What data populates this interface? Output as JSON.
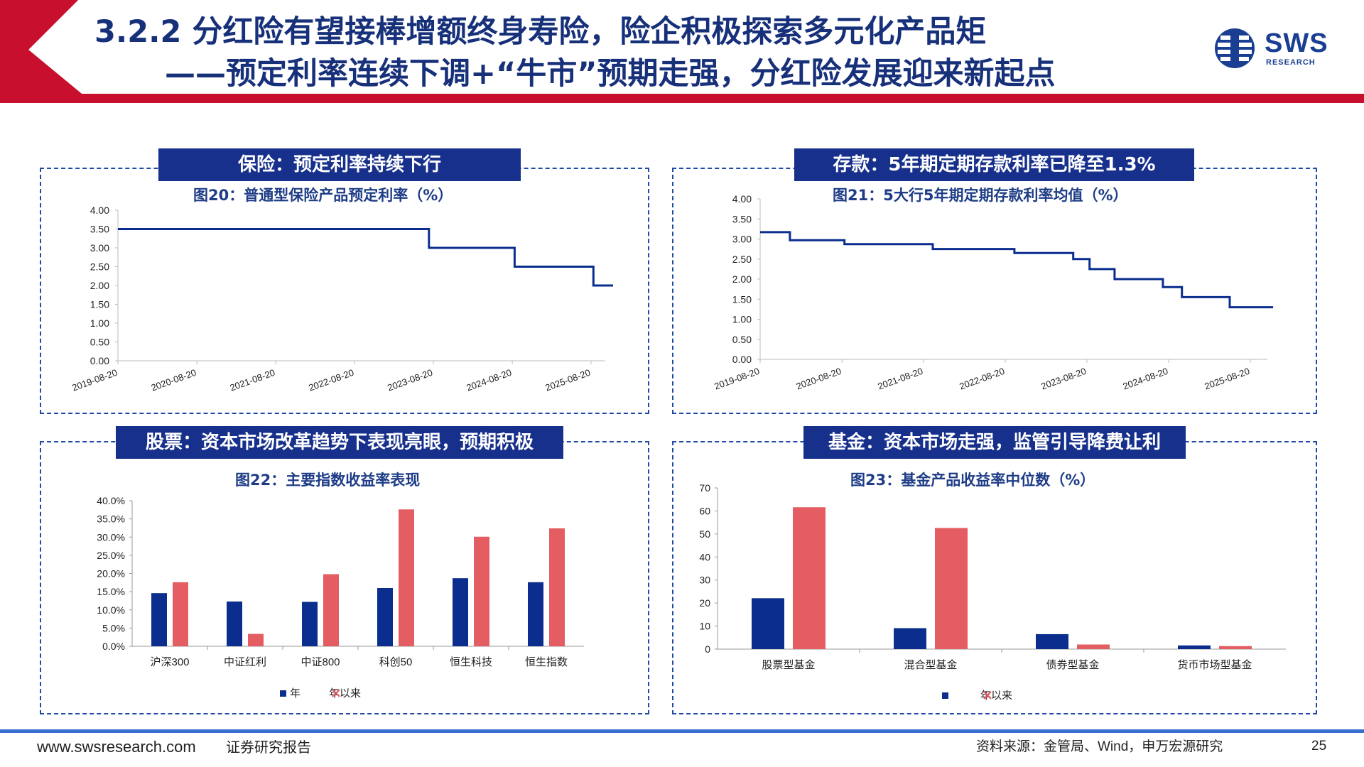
{
  "header": {
    "title_line1": "3.2.2 分红险有望接棒增额终身寿险，险企积极探索多元化产品矩",
    "title_line2": "——预定利率连续下调+“牛市”预期走强，分红险发展迎来新起点"
  },
  "logo": {
    "text": "SWS",
    "sub": "RESEARCH",
    "icon": "sws-globe-icon"
  },
  "colors": {
    "navy": "#17308c",
    "red": "#c8102e",
    "bar_blue": "#0b2e8e",
    "bar_red": "#e35d63"
  },
  "panels": {
    "insurance": {
      "title": "保险：预定利率持续下行",
      "fig_title": "图20：普通型保险产品预定利率（%）"
    },
    "deposit": {
      "title": "存款：5年期定期存款利率已降至1.3%",
      "fig_title": "图21：5大行5年期定期存款利率均值（%）"
    },
    "stocks": {
      "title": "股票：资本市场改革趋势下表现亮眼，预期积极",
      "fig_title": "图22：主要指数收益率表现"
    },
    "funds": {
      "title": "基金：资本市场走强，监管引导降费让利",
      "fig_title": "图23：基金产品收益率中位数（%）"
    }
  },
  "chart_data": [
    {
      "id": "fig20",
      "type": "line",
      "x_ticks": [
        "2019-08-20",
        "2020-08-20",
        "2021-08-20",
        "2022-08-20",
        "2023-08-20",
        "2024-08-20",
        "2025-08-20"
      ],
      "y_ticks": [
        "0.00",
        "0.50",
        "1.00",
        "1.50",
        "2.00",
        "2.50",
        "3.00",
        "3.50",
        "4.00"
      ],
      "ylim": [
        0,
        4
      ],
      "series": [
        {
          "points": [
            [
              "2019-08-20",
              3.5
            ],
            [
              "2023-07-31",
              3.5
            ],
            [
              "2023-07-31",
              3.0
            ],
            [
              "2024-08-31",
              3.0
            ],
            [
              "2024-08-31",
              2.5
            ],
            [
              "2025-08-31",
              2.5
            ],
            [
              "2025-08-31",
              2.0
            ],
            [
              "2025-11-30",
              2.0
            ]
          ]
        }
      ]
    },
    {
      "id": "fig21",
      "type": "line",
      "x_ticks": [
        "2019-08-20",
        "2020-08-20",
        "2021-08-20",
        "2022-08-20",
        "2023-08-20",
        "2024-08-20",
        "2025-08-20"
      ],
      "y_ticks": [
        "0.00",
        "0.50",
        "1.00",
        "1.50",
        "2.00",
        "2.50",
        "3.00",
        "3.50",
        "4.00"
      ],
      "ylim": [
        0,
        4
      ],
      "series": [
        {
          "points": [
            [
              "2019-08-20",
              3.17
            ],
            [
              "2019-12-31",
              3.17
            ],
            [
              "2019-12-31",
              2.97
            ],
            [
              "2020-08-31",
              2.97
            ],
            [
              "2020-08-31",
              2.87
            ],
            [
              "2021-09-30",
              2.87
            ],
            [
              "2021-09-30",
              2.75
            ],
            [
              "2022-09-30",
              2.75
            ],
            [
              "2022-09-30",
              2.65
            ],
            [
              "2023-06-20",
              2.65
            ],
            [
              "2023-06-20",
              2.5
            ],
            [
              "2023-09-01",
              2.5
            ],
            [
              "2023-09-01",
              2.25
            ],
            [
              "2023-12-22",
              2.25
            ],
            [
              "2023-12-22",
              2.0
            ],
            [
              "2024-07-25",
              2.0
            ],
            [
              "2024-07-25",
              1.8
            ],
            [
              "2024-10-18",
              1.8
            ],
            [
              "2024-10-18",
              1.55
            ],
            [
              "2025-05-20",
              1.55
            ],
            [
              "2025-05-20",
              1.3
            ],
            [
              "2025-11-30",
              1.3
            ]
          ]
        }
      ]
    },
    {
      "id": "fig22",
      "type": "bar",
      "categories": [
        "沪深300",
        "中证红利",
        "中证800",
        "科创50",
        "恒生科技",
        "恒生指数"
      ],
      "y_ticks": [
        "0.0%",
        "5.0%",
        "10.0%",
        "15.0%",
        "20.0%",
        "25.0%",
        "30.0%",
        "35.0%",
        "40.0%"
      ],
      "ylim": [
        0,
        40
      ],
      "legend": [
        "年",
        "年以来"
      ],
      "series": [
        {
          "values": [
            14.6,
            12.3,
            12.2,
            16.0,
            18.7,
            17.6
          ]
        },
        {
          "values": [
            17.6,
            3.4,
            19.8,
            37.6,
            30.1,
            32.4
          ]
        }
      ]
    },
    {
      "id": "fig23",
      "type": "bar",
      "categories": [
        "股票型基金",
        "混合型基金",
        "债券型基金",
        "货币市场型基金"
      ],
      "y_ticks": [
        "0",
        "10",
        "20",
        "30",
        "40",
        "50",
        "60",
        "70"
      ],
      "ylim": [
        0,
        70
      ],
      "legend": [
        "",
        "年以来"
      ],
      "series": [
        {
          "values": [
            22.1,
            9.1,
            6.5,
            1.6
          ]
        },
        {
          "values": [
            61.6,
            52.6,
            2.0,
            1.3
          ]
        }
      ]
    }
  ],
  "footer": {
    "website": "www.swsresearch.com",
    "report_type": "证券研究报告",
    "source": "资料来源：金管局、Wind，申万宏源研究",
    "page": "25"
  }
}
